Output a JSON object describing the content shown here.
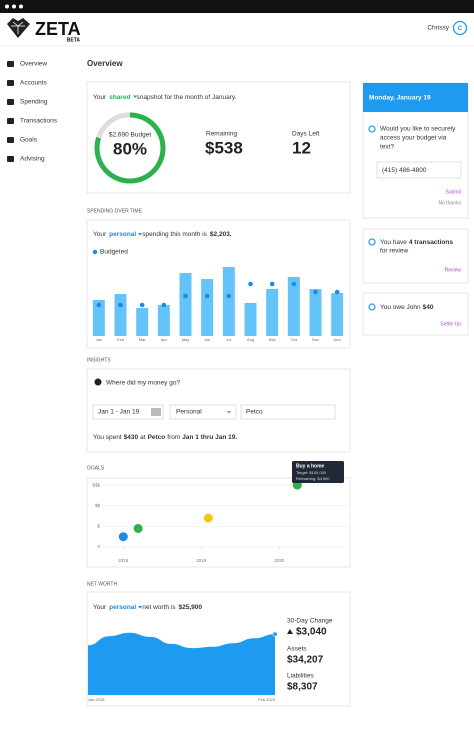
{
  "header": {
    "logo": "ZETA",
    "badge": "BETA",
    "user": "Chrissy",
    "avatar": "C"
  },
  "nav": [
    "Overview",
    "Accounts",
    "Spending",
    "Transactions",
    "Goals",
    "Advising"
  ],
  "page_title": "Overview",
  "snapshot": {
    "intro": [
      "Your",
      "shared",
      "snapshot for the month of January."
    ],
    "budget_label": "$2,690 Budget",
    "ring": {
      "value": 80,
      "label": "80%"
    },
    "remaining_label": "Remaining",
    "remaining": "$538",
    "days_label": "Days Left",
    "days": "12"
  },
  "spending": {
    "heading": "SPENDING OVER TIME",
    "intro": [
      "Your",
      "personal",
      "spending this month is",
      "$2,203."
    ]
  },
  "insights": {
    "heading": "INSIGHTS",
    "question": "Where did my money go?",
    "date_range": "Jan 1 - Jan 19",
    "scope": "Personal",
    "merchant": "Petco",
    "sentence": [
      "You spent",
      "$430",
      "at",
      "Petco",
      "from",
      "Jan 1 thru Jan 19."
    ]
  },
  "goals": {
    "heading": "GOALS",
    "tooltip": [
      "Buy a home",
      "Target: $100,000",
      "Remaining: $4,500"
    ]
  },
  "net_worth": {
    "heading": "NET WORTH",
    "intro": [
      "Your",
      "personal",
      "net worth is",
      "$25,900"
    ],
    "change_label": "30-Day Change",
    "change": "$3,040",
    "assets_label": "Assets",
    "assets": "$34,207",
    "liabilities_label": "Liabilities",
    "liabilities": "$8,307"
  },
  "sidebar": {
    "date": "Monday, January 19",
    "question": [
      "Would you like to securely",
      "access your budget via",
      "text?"
    ],
    "phone": "(415) 486-4800",
    "submit": "Submit",
    "decline": "No thanks",
    "transactions": [
      "You have",
      "4 transactions",
      "for review"
    ],
    "review": "Review",
    "owe": [
      "You owe John",
      "$40"
    ],
    "settle": "Settle Up"
  },
  "chart_data": [
    {
      "type": "bar",
      "categories": [
        "Jan",
        "Feb",
        "Mar",
        "Apr",
        "May",
        "Jun",
        "Jul",
        "Aug",
        "Sep",
        "Oct",
        "Nov",
        "Dec"
      ],
      "ylim": [
        0,
        80
      ],
      "series": [
        {
          "color": "#64c4fa",
          "values": [
            36,
            42,
            28,
            31,
            63,
            57,
            69,
            33,
            47,
            59,
            47,
            43
          ]
        },
        {
          "name": "Budgeted",
          "color": "#1e88e5",
          "values": [
            31,
            31,
            31,
            31,
            40,
            40,
            40,
            52,
            52,
            52,
            44,
            44
          ]
        }
      ]
    },
    {
      "type": "scatter",
      "xlim": [
        2017.74,
        2020.88
      ],
      "xticks": [
        2018,
        2019,
        2020
      ],
      "ylim": [
        0,
        3.2
      ],
      "yticks": [
        {
          "value": 0,
          "label": "0"
        },
        {
          "value": 1,
          "label": "$"
        },
        {
          "value": 2,
          "label": "$$"
        },
        {
          "value": 3,
          "label": "$$$"
        }
      ],
      "grid": true,
      "x": [
        2018,
        2018.19,
        2019.09,
        2020.23
      ],
      "values": [
        0.5,
        0.9,
        1.4,
        3
      ],
      "colors": [
        "#1e88e5",
        "#2bb24c",
        "#f5c518",
        "#2bb24c"
      ]
    },
    {
      "type": "area",
      "color": "#1e9af0",
      "ylim": [
        0,
        100
      ],
      "categories": [
        "Jan 2018",
        null,
        null,
        null,
        null,
        null,
        null,
        null,
        null,
        "Feb 2020"
      ],
      "values": [
        71,
        84,
        89,
        83,
        73,
        67,
        69,
        74,
        81,
        87
      ]
    }
  ]
}
